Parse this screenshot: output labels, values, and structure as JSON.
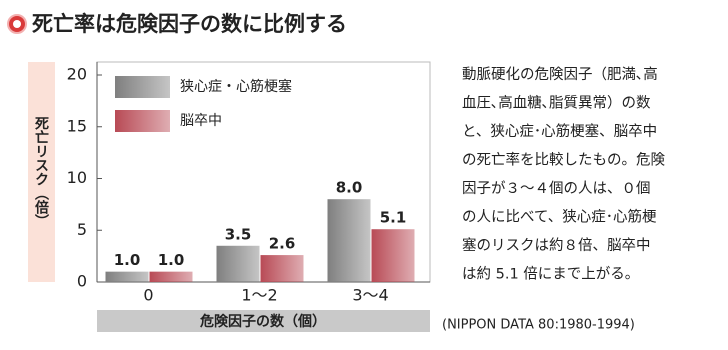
{
  "chart_data": {
    "type": "bar",
    "title": "死亡率は危険因子の数に比例する",
    "y_label": "死亡リスク（倍）",
    "x_label": "危険因子の数（個）",
    "categories": [
      "0",
      "1～2",
      "3～4"
    ],
    "series": [
      {
        "name": "狭心症・心筋梗塞",
        "color": "#7f7f7f",
        "values": [
          1.0,
          3.5,
          8.0
        ],
        "value_labels": [
          "1.0",
          "3.5",
          "8.0"
        ]
      },
      {
        "name": "脳卒中",
        "color": "#b84a55",
        "values": [
          1.0,
          2.6,
          5.1
        ],
        "value_labels": [
          "1.0",
          "2.6",
          "5.1"
        ]
      }
    ],
    "ylim": [
      0,
      20
    ],
    "yticks": [
      0,
      5,
      10,
      15,
      20
    ],
    "grid": false,
    "legend": "top-left",
    "source": "(NIPPON DATA 80:1980-1994)",
    "description": [
      "動脈硬化の危険因子（肥満､高",
      "血圧､高血糖､脂質異常）の数",
      "と、狭心症･心筋梗塞、脳卒中",
      "の死亡率を比較したもの。危険",
      "因子が３～４個の人は、０個",
      "の人に比べて、狭心症･心筋梗",
      "塞のリスクは約８倍、脳卒中",
      "は約 5.1 倍にまで上がる。"
    ]
  }
}
